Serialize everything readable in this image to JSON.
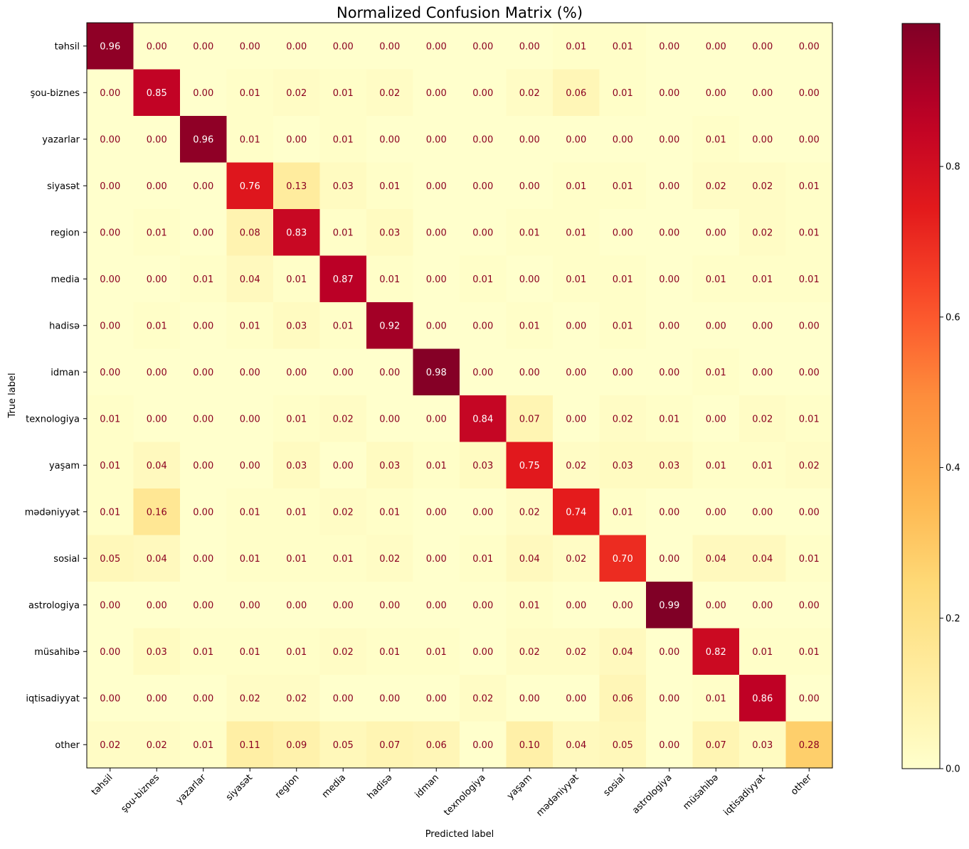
{
  "chart_data": {
    "type": "heatmap",
    "title": "Normalized Confusion Matrix (%)",
    "xlabel": "Predicted label",
    "ylabel": "True label",
    "labels": [
      "təhsil",
      "şou-biznes",
      "yazarlar",
      "siyasət",
      "region",
      "media",
      "hadisə",
      "idman",
      "texnologiya",
      "yaşam",
      "mədəniyyət",
      "sosial",
      "astrologiya",
      "müsahibə",
      "iqtisadiyyat",
      "other"
    ],
    "values": [
      [
        0.96,
        0.0,
        0.0,
        0.0,
        0.0,
        0.0,
        0.0,
        0.0,
        0.0,
        0.0,
        0.01,
        0.01,
        0.0,
        0.0,
        0.0,
        0.0
      ],
      [
        0.0,
        0.85,
        0.0,
        0.01,
        0.02,
        0.01,
        0.02,
        0.0,
        0.0,
        0.02,
        0.06,
        0.01,
        0.0,
        0.0,
        0.0,
        0.0
      ],
      [
        0.0,
        0.0,
        0.96,
        0.01,
        0.0,
        0.01,
        0.0,
        0.0,
        0.0,
        0.0,
        0.0,
        0.0,
        0.0,
        0.01,
        0.0,
        0.0
      ],
      [
        0.0,
        0.0,
        0.0,
        0.76,
        0.13,
        0.03,
        0.01,
        0.0,
        0.0,
        0.0,
        0.01,
        0.01,
        0.0,
        0.02,
        0.02,
        0.01
      ],
      [
        0.0,
        0.01,
        0.0,
        0.08,
        0.83,
        0.01,
        0.03,
        0.0,
        0.0,
        0.01,
        0.01,
        0.0,
        0.0,
        0.0,
        0.02,
        0.01
      ],
      [
        0.0,
        0.0,
        0.01,
        0.04,
        0.01,
        0.87,
        0.01,
        0.0,
        0.01,
        0.0,
        0.01,
        0.01,
        0.0,
        0.01,
        0.01,
        0.01
      ],
      [
        0.0,
        0.01,
        0.0,
        0.01,
        0.03,
        0.01,
        0.92,
        0.0,
        0.0,
        0.01,
        0.0,
        0.01,
        0.0,
        0.0,
        0.0,
        0.0
      ],
      [
        0.0,
        0.0,
        0.0,
        0.0,
        0.0,
        0.0,
        0.0,
        0.98,
        0.0,
        0.0,
        0.0,
        0.0,
        0.0,
        0.01,
        0.0,
        0.0
      ],
      [
        0.01,
        0.0,
        0.0,
        0.0,
        0.01,
        0.02,
        0.0,
        0.0,
        0.84,
        0.07,
        0.0,
        0.02,
        0.01,
        0.0,
        0.02,
        0.01
      ],
      [
        0.01,
        0.04,
        0.0,
        0.0,
        0.03,
        0.0,
        0.03,
        0.01,
        0.03,
        0.75,
        0.02,
        0.03,
        0.03,
        0.01,
        0.01,
        0.02
      ],
      [
        0.01,
        0.16,
        0.0,
        0.01,
        0.01,
        0.02,
        0.01,
        0.0,
        0.0,
        0.02,
        0.74,
        0.01,
        0.0,
        0.0,
        0.0,
        0.0
      ],
      [
        0.05,
        0.04,
        0.0,
        0.01,
        0.01,
        0.01,
        0.02,
        0.0,
        0.01,
        0.04,
        0.02,
        0.7,
        0.0,
        0.04,
        0.04,
        0.01
      ],
      [
        0.0,
        0.0,
        0.0,
        0.0,
        0.0,
        0.0,
        0.0,
        0.0,
        0.0,
        0.01,
        0.0,
        0.0,
        0.99,
        0.0,
        0.0,
        0.0
      ],
      [
        0.0,
        0.03,
        0.01,
        0.01,
        0.01,
        0.02,
        0.01,
        0.01,
        0.0,
        0.02,
        0.02,
        0.04,
        0.0,
        0.82,
        0.01,
        0.01
      ],
      [
        0.0,
        0.0,
        0.0,
        0.02,
        0.02,
        0.0,
        0.0,
        0.0,
        0.02,
        0.0,
        0.0,
        0.06,
        0.0,
        0.01,
        0.86,
        0.0
      ],
      [
        0.02,
        0.02,
        0.01,
        0.11,
        0.09,
        0.05,
        0.07,
        0.06,
        0.0,
        0.1,
        0.04,
        0.05,
        0.0,
        0.07,
        0.03,
        0.28
      ]
    ],
    "colormap": "YlOrRd",
    "colorbar": {
      "range": [
        0,
        0.99
      ],
      "ticks": [
        0.0,
        0.2,
        0.4,
        0.6,
        0.8
      ],
      "tick_labels": [
        "0.0",
        "0.2",
        "0.4",
        "0.6",
        "0.8"
      ]
    },
    "cell_text_color": "#8b0020",
    "grid": false
  }
}
